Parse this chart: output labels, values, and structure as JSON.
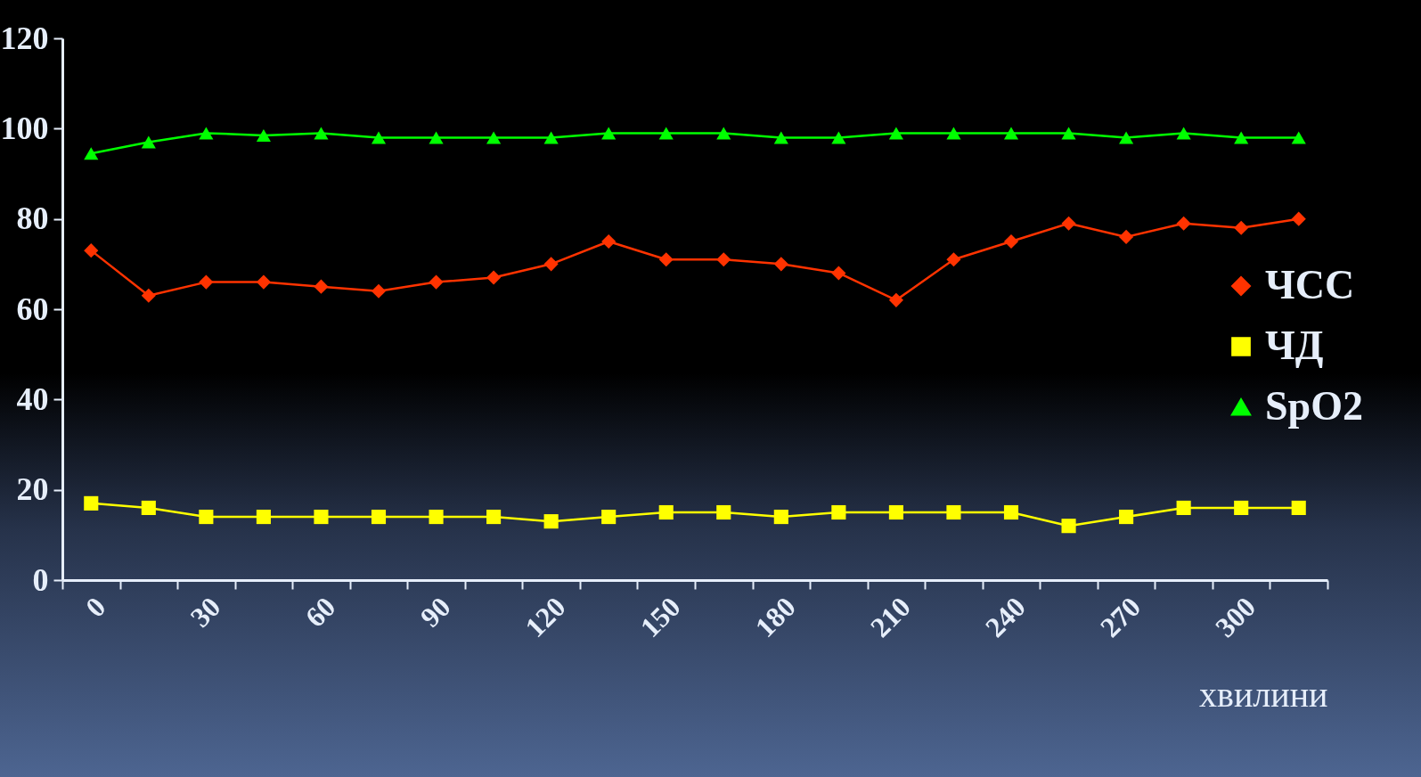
{
  "chart_data": {
    "type": "line",
    "xlabel": "хвилини",
    "categories": [
      "0",
      null,
      "30",
      null,
      "60",
      null,
      "90",
      null,
      "120",
      null,
      "150",
      null,
      "180",
      null,
      "210",
      null,
      "240",
      null,
      "270",
      null,
      "300",
      null
    ],
    "series": [
      {
        "name": "ЧСС",
        "color": "#ff3300",
        "marker": "diamond",
        "values": [
          73,
          63,
          66,
          66,
          65,
          64,
          66,
          67,
          70,
          75,
          71,
          71,
          70,
          68,
          62,
          71,
          75,
          79,
          76,
          79,
          78,
          80
        ]
      },
      {
        "name": "ЧД",
        "color": "#ffff00",
        "marker": "square",
        "values": [
          17,
          16,
          14,
          14,
          14,
          14,
          14,
          14,
          13,
          14,
          15,
          15,
          14,
          15,
          15,
          15,
          15,
          12,
          14,
          16,
          16,
          16
        ]
      },
      {
        "name": "SpO2",
        "color": "#00ff00",
        "marker": "triangle",
        "values": [
          94.5,
          97,
          99,
          98.5,
          99,
          98,
          98,
          98,
          98,
          99,
          99,
          99,
          98,
          98,
          99,
          99,
          99,
          99,
          98,
          99,
          98,
          98
        ]
      }
    ],
    "ylim": [
      0,
      120
    ],
    "yticks": [
      0,
      20,
      40,
      60,
      80,
      100,
      120
    ],
    "grid": false,
    "legend": "right"
  }
}
